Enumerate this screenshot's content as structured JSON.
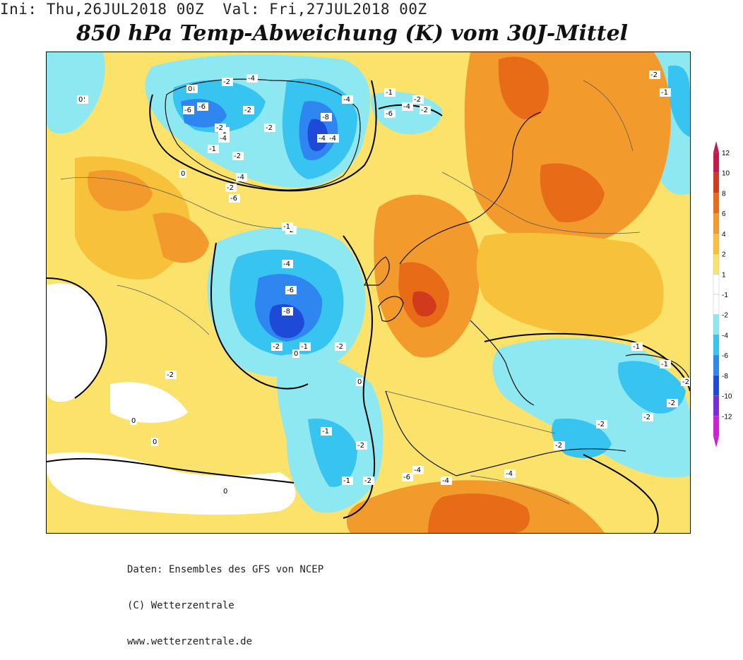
{
  "header": {
    "init_line": "Ini: Thu,26JUL2018 00Z  Val: Fri,27JUL2018 00Z",
    "title": "850 hPa Temp-Abweichung (K) vom 30J-Mittel"
  },
  "credits": {
    "line1": "Daten: Ensembles des GFS von NCEP",
    "line2": "(C) Wetterzentrale",
    "line3": "www.wetterzentrale.de"
  },
  "legend": {
    "levels": [
      {
        "label": "12",
        "color": "#c8174a"
      },
      {
        "label": "10",
        "color": "#d23a1e"
      },
      {
        "label": "8",
        "color": "#e86c18"
      },
      {
        "label": "6",
        "color": "#f29b2c"
      },
      {
        "label": "4",
        "color": "#f7c23a"
      },
      {
        "label": "2",
        "color": "#fbe36b"
      },
      {
        "label": "1",
        "color": "#ffffff"
      },
      {
        "label": "-1",
        "color": "#ffffff"
      },
      {
        "label": "-2",
        "color": "#8ee8f2"
      },
      {
        "label": "-4",
        "color": "#38c4f0"
      },
      {
        "label": "-6",
        "color": "#2f86f0"
      },
      {
        "label": "-8",
        "color": "#1e4ad8"
      },
      {
        "label": "-10",
        "color": "#7a2be0"
      },
      {
        "label": "-12",
        "color": "#d21ed2"
      }
    ]
  },
  "map": {
    "contour_labels": [
      "-2",
      "-4",
      "-2",
      "-6",
      "-8",
      "-6",
      "-4",
      "-4",
      "-2",
      "-1",
      "0",
      "-2",
      "-4",
      "-6",
      "-8",
      "-2",
      "-1",
      "-2",
      "-1",
      "-1",
      "-2",
      "-2",
      "-4",
      "-6",
      "-4",
      "-4",
      "-2",
      "-2",
      "-1",
      "-1",
      "-2",
      "-2",
      "-2",
      "-1",
      "-2",
      "-2",
      "-1",
      "-2",
      "-4",
      "-6",
      "-4",
      "-4",
      "-2",
      "-2",
      "-4",
      "-1",
      "-2",
      "-4",
      "-2",
      "-6",
      "-1",
      "-2",
      "0",
      "0",
      "0",
      "0",
      "0",
      "0",
      "0"
    ]
  }
}
